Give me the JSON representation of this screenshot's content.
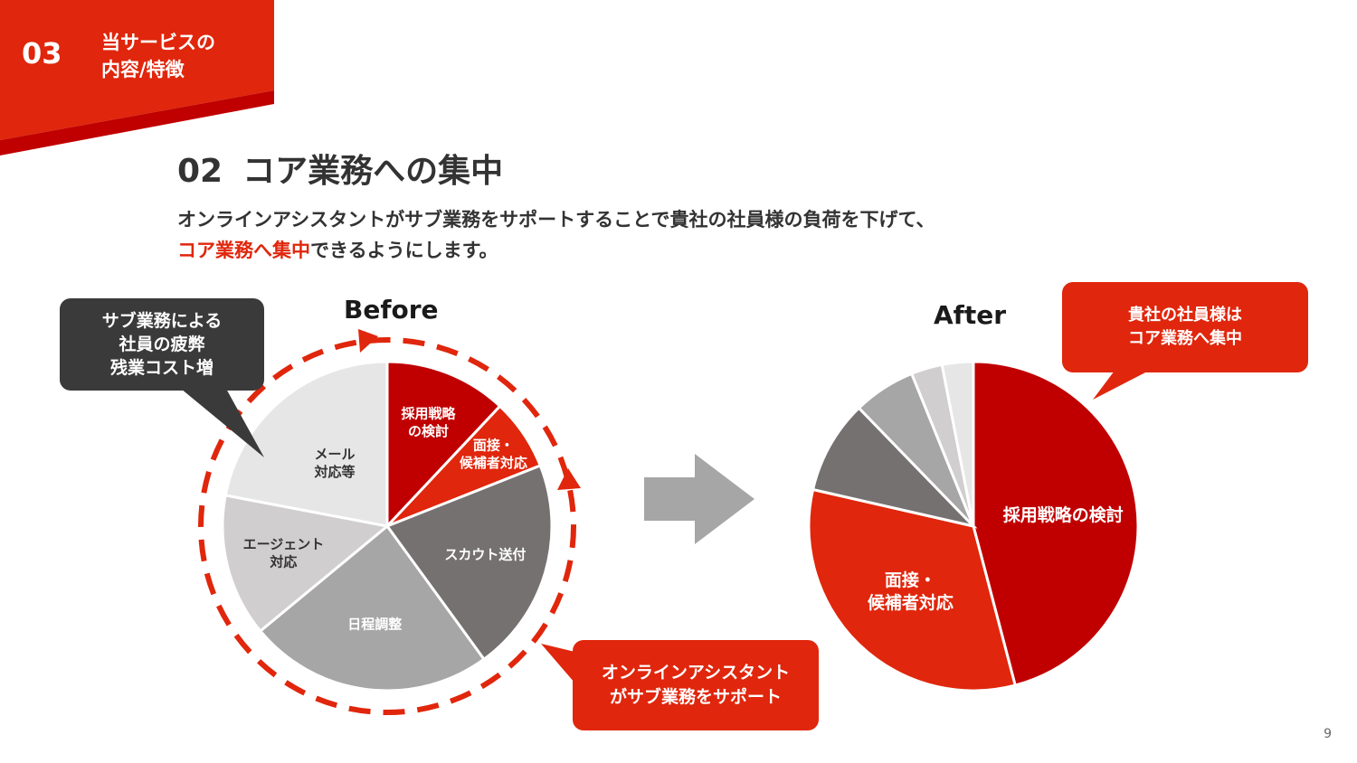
{
  "section": {
    "number": "03",
    "title_line1": "当サービスの",
    "title_line2": "内容/特徴"
  },
  "heading": {
    "number": "02",
    "title": "コア業務への集中"
  },
  "description": {
    "line1": "オンラインアシスタントがサブ業務をサポートすることで貴社の社員様の負荷を下げて、",
    "line2_emphasis": "コア業務へ集中",
    "line2_rest": "できるようにします。"
  },
  "callouts": {
    "fatigue": [
      "サブ業務による",
      "社員の疲弊",
      "残業コスト増"
    ],
    "support": [
      "オンラインアシスタント",
      "がサブ業務をサポート"
    ],
    "focus": [
      "貴社の社員様は",
      "コア業務へ集中"
    ]
  },
  "colors": {
    "brand_red": "#e0260c",
    "dark_red": "#c00000",
    "dark_gray": "#767171",
    "mid_gray": "#a6a6a6",
    "light_gray": "#d0cece",
    "lighter_gray": "#e7e6e6",
    "callout_dark": "#3a3a3a"
  },
  "page_number": "9",
  "chart_data": [
    {
      "type": "pie",
      "title": "Before",
      "slices": [
        {
          "label": "採用戦略の検討",
          "value": 12,
          "color": "#c00000"
        },
        {
          "label": "面接・候補者対応",
          "value": 7,
          "color": "#e0260c"
        },
        {
          "label": "スカウト送付",
          "value": 21,
          "color": "#767171"
        },
        {
          "label": "日程調整",
          "value": 24,
          "color": "#a6a6a6"
        },
        {
          "label": "エージェント対応",
          "value": 14,
          "color": "#d0cece"
        },
        {
          "label": "メール対応等",
          "value": 22,
          "color": "#e7e6e6"
        }
      ]
    },
    {
      "type": "pie",
      "title": "After",
      "slices": [
        {
          "label": "採用戦略の検討",
          "value": 45,
          "color": "#c00000"
        },
        {
          "label": "面接・候補者対応",
          "value": 32,
          "color": "#e0260c"
        },
        {
          "label": "",
          "value": 9,
          "color": "#767171"
        },
        {
          "label": "",
          "value": 6,
          "color": "#a6a6a6"
        },
        {
          "label": "",
          "value": 3,
          "color": "#d0cece"
        },
        {
          "label": "",
          "value": 3,
          "color": "#e7e6e6"
        }
      ]
    }
  ]
}
